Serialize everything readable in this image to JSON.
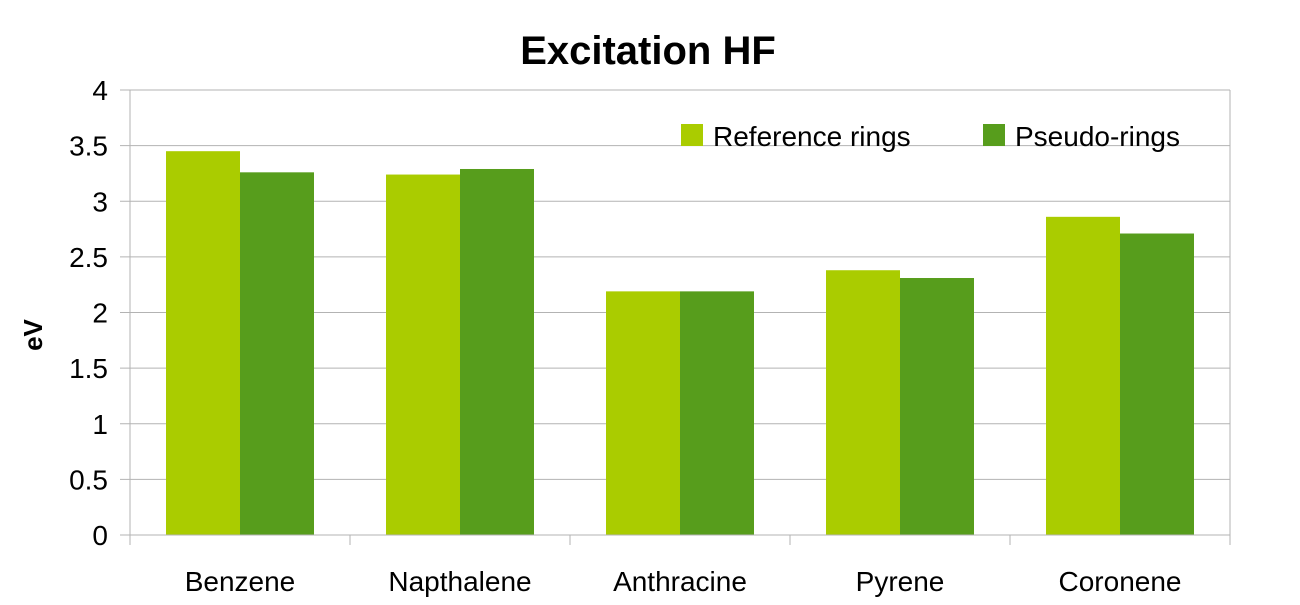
{
  "chart_data": {
    "type": "bar",
    "title": "Excitation HF",
    "xlabel": "",
    "ylabel": "eV",
    "ylim": [
      0,
      4
    ],
    "yticks": [
      0,
      0.5,
      1,
      1.5,
      2,
      2.5,
      3,
      3.5,
      4
    ],
    "ytick_labels": [
      "0",
      "0.5",
      "1",
      "1.5",
      "2",
      "2.5",
      "3",
      "3.5",
      "4"
    ],
    "grid": true,
    "legend_position": "top-right",
    "categories": [
      "Benzene",
      "Napthalene",
      "Anthracine",
      "Pyrene",
      "Coronene"
    ],
    "series": [
      {
        "name": "Reference rings",
        "color": "#aacc00",
        "values": [
          3.45,
          3.24,
          2.19,
          2.38,
          2.86
        ]
      },
      {
        "name": "Pseudo-rings",
        "color": "#579d1c",
        "values": [
          3.26,
          3.29,
          2.19,
          2.31,
          2.71
        ]
      }
    ]
  }
}
